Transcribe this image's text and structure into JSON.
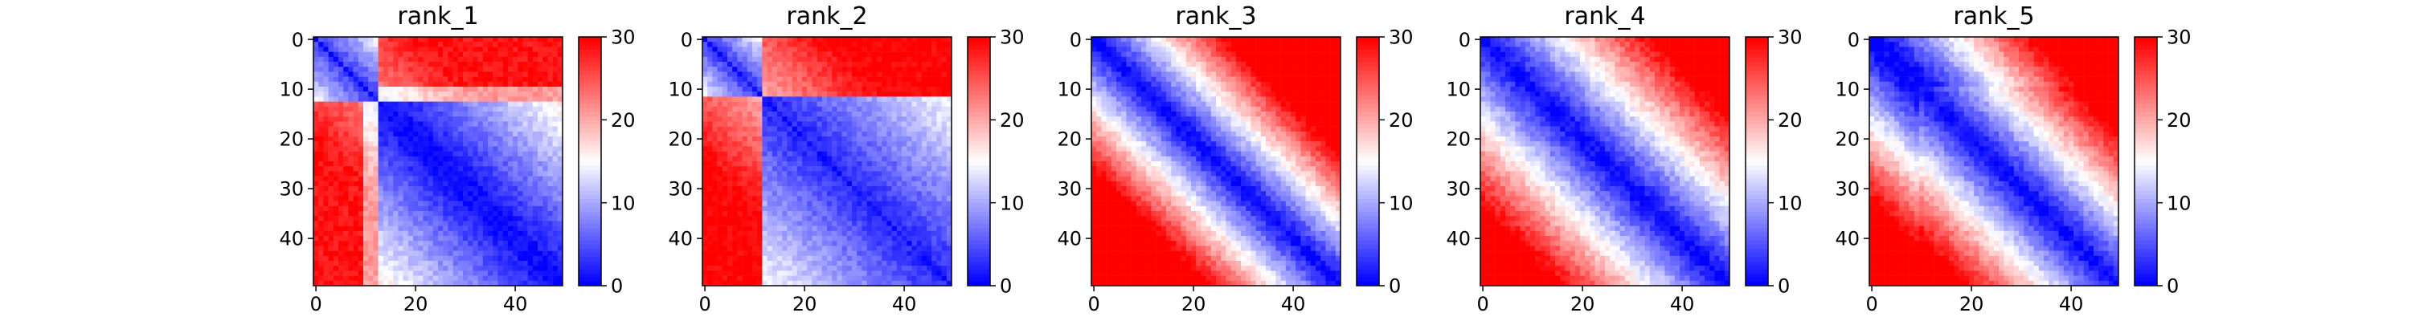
{
  "figure": {
    "panels": [
      {
        "title": "rank_1"
      },
      {
        "title": "rank_2"
      },
      {
        "title": "rank_3"
      },
      {
        "title": "rank_4"
      },
      {
        "title": "rank_5"
      }
    ]
  },
  "chart_data": [
    {
      "type": "heatmap",
      "title": "rank_1",
      "matrix_size": 50,
      "x_ticks": [
        "0",
        "20",
        "40"
      ],
      "y_ticks": [
        "0",
        "10",
        "20",
        "30",
        "40"
      ],
      "colorbar": {
        "min": 0,
        "max": 30,
        "ticks": [
          "0",
          "10",
          "20",
          "30"
        ],
        "colormap": "bwr"
      },
      "description_of_structure": "diagonal near 0; block 0-13 low; upper-right high; lower block 20-49 low",
      "pattern": "block"
    },
    {
      "type": "heatmap",
      "title": "rank_2",
      "matrix_size": 50,
      "x_ticks": [
        "0",
        "20",
        "40"
      ],
      "y_ticks": [
        "0",
        "10",
        "20",
        "30",
        "40"
      ],
      "colorbar": {
        "min": 0,
        "max": 30,
        "ticks": [
          "0",
          "10",
          "20",
          "30"
        ],
        "colormap": "bwr"
      },
      "pattern": "block2"
    },
    {
      "type": "heatmap",
      "title": "rank_3",
      "matrix_size": 50,
      "x_ticks": [
        "0",
        "20",
        "40"
      ],
      "y_ticks": [
        "0",
        "10",
        "20",
        "30",
        "40"
      ],
      "colorbar": {
        "min": 0,
        "max": 30,
        "ticks": [
          "0",
          "10",
          "20",
          "30"
        ],
        "colormap": "bwr"
      },
      "pattern": "distance"
    },
    {
      "type": "heatmap",
      "title": "rank_4",
      "matrix_size": 50,
      "x_ticks": [
        "0",
        "20",
        "40"
      ],
      "y_ticks": [
        "0",
        "10",
        "20",
        "30",
        "40"
      ],
      "colorbar": {
        "min": 0,
        "max": 30,
        "ticks": [
          "0",
          "10",
          "20",
          "30"
        ],
        "colormap": "bwr"
      },
      "pattern": "distance_soft"
    },
    {
      "type": "heatmap",
      "title": "rank_5",
      "matrix_size": 50,
      "x_ticks": [
        "0",
        "20",
        "40"
      ],
      "y_ticks": [
        "0",
        "10",
        "20",
        "30",
        "40"
      ],
      "colorbar": {
        "min": 0,
        "max": 30,
        "ticks": [
          "0",
          "10",
          "20",
          "30"
        ],
        "colormap": "bwr"
      },
      "pattern": "distance_mixed"
    }
  ]
}
